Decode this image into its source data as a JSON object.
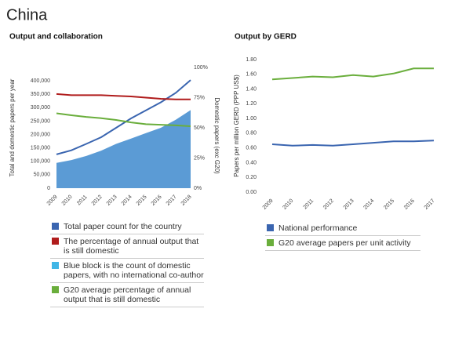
{
  "title": "China",
  "chart_data": [
    {
      "type": "area",
      "title": "Output and collaboration",
      "ylabel": "Total and domestic papers per year",
      "y2label": "Domestic papers (exc G20)",
      "categories": [
        "2009",
        "2010",
        "2011",
        "2012",
        "2013",
        "2014",
        "2015",
        "2016",
        "2017",
        "2018"
      ],
      "ylim": [
        0,
        450000
      ],
      "yticks": [
        0,
        {
          "value": 50000,
          "label": "50,000"
        },
        {
          "value": 100000,
          "label": "100,000"
        },
        {
          "value": 150000,
          "label": "150,000"
        },
        {
          "value": 200000,
          "label": "200,000"
        },
        {
          "value": 250000,
          "label": "250,000"
        },
        {
          "value": 300000,
          "label": "300,000"
        },
        {
          "value": 350000,
          "label": "350,000"
        },
        {
          "value": 400000,
          "label": "400,000"
        }
      ],
      "y2lim": [
        0,
        100
      ],
      "y2ticks": [
        {
          "value": 0,
          "label": "0%"
        },
        {
          "value": 25,
          "label": "25%"
        },
        {
          "value": 50,
          "label": "50%"
        },
        {
          "value": 75,
          "label": "75%"
        },
        {
          "value": 100,
          "label": "100%"
        }
      ],
      "series": [
        {
          "name": "Total paper count for the country",
          "color": "#3a65b0",
          "mark": "line",
          "values": [
            126000,
            141000,
            165000,
            190000,
            225000,
            260000,
            290000,
            320000,
            355000,
            403000
          ]
        },
        {
          "name": "The percentage of annual output that is still domestic",
          "color": "#b01c1c",
          "mark": "line",
          "axis": "y2",
          "values": [
            78,
            77,
            77,
            77,
            76.5,
            76,
            75,
            74,
            73.5,
            73.5
          ]
        },
        {
          "name": "Blue block is the count of domestic papers, with no international co-author",
          "color": "#41b6e6",
          "fill": "#5b9bd5",
          "mark": "area",
          "values": [
            94000,
            105000,
            120000,
            140000,
            165000,
            185000,
            205000,
            225000,
            255000,
            291000
          ]
        },
        {
          "name": "G20 average percentage of annual output that is still domestic",
          "color": "#6aae3c",
          "mark": "line",
          "axis": "y2",
          "values": [
            62,
            60.4,
            59,
            58,
            56.5,
            54.5,
            53,
            52.5,
            52,
            51.3
          ]
        }
      ]
    },
    {
      "type": "line",
      "title": "Output by GERD",
      "ylabel": "Papers per million GERD (PPP US$)",
      "categories": [
        "2009",
        "2010",
        "2011",
        "2012",
        "2013",
        "2014",
        "2015",
        "2016",
        "2017"
      ],
      "ylim": [
        0,
        1.8
      ],
      "yticks": [
        {
          "value": 0,
          "label": "0.00"
        },
        {
          "value": 0.2,
          "label": "0.20"
        },
        {
          "value": 0.4,
          "label": "0.40"
        },
        {
          "value": 0.6,
          "label": "0.60"
        },
        {
          "value": 0.8,
          "label": "0.80"
        },
        {
          "value": 1,
          "label": "1.00"
        },
        {
          "value": 1.2,
          "label": "1.20"
        },
        {
          "value": 1.4,
          "label": "1.40"
        },
        {
          "value": 1.6,
          "label": "1.60"
        },
        {
          "value": 1.8,
          "label": "1.80"
        }
      ],
      "series": [
        {
          "name": "National performance",
          "color": "#3a65b0",
          "mark": "line",
          "values": [
            0.65,
            0.63,
            0.64,
            0.63,
            0.65,
            0.67,
            0.69,
            0.69,
            0.7
          ]
        },
        {
          "name": "G20 average papers per unit activity",
          "color": "#6aae3c",
          "mark": "line",
          "values": [
            1.53,
            1.55,
            1.57,
            1.56,
            1.59,
            1.57,
            1.61,
            1.68,
            1.68
          ]
        }
      ]
    }
  ]
}
